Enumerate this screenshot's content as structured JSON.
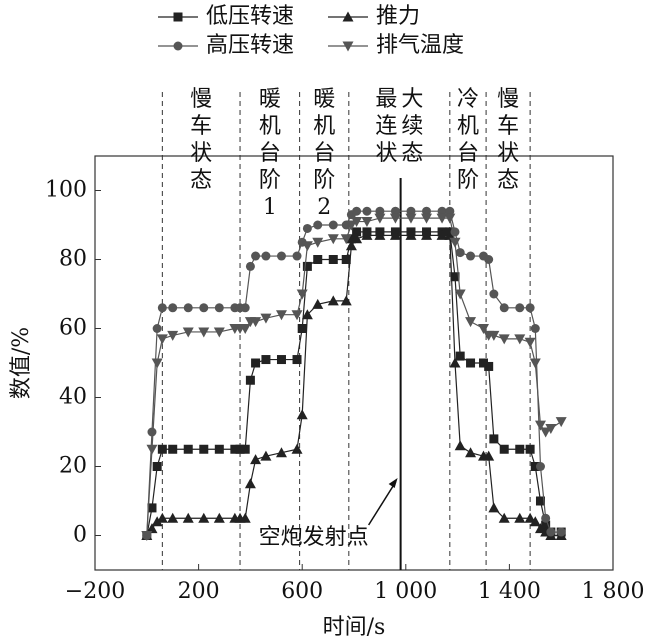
{
  "chart_data": {
    "type": "line",
    "x_label": "时间/s",
    "y_label": "数值/%",
    "xlim": [
      -200,
      1800
    ],
    "xticks": [
      {
        "value": -200,
        "label": "−200"
      },
      200,
      600,
      {
        "value": 1000,
        "label": "1 000"
      },
      {
        "value": 1400,
        "label": "1 400"
      },
      {
        "value": 1800,
        "label": "1 800"
      }
    ],
    "ylim": [
      -10,
      110
    ],
    "yticks": [
      0,
      20,
      40,
      60,
      80,
      100
    ],
    "x": [
      0,
      20,
      40,
      60,
      100,
      160,
      220,
      280,
      340,
      360,
      380,
      400,
      420,
      460,
      520,
      580,
      600,
      620,
      660,
      720,
      770,
      790,
      810,
      850,
      900,
      960,
      1020,
      1080,
      1140,
      1170,
      1190,
      1210,
      1250,
      1300,
      1320,
      1340,
      1380,
      1440,
      1480,
      1500,
      1520,
      1540,
      1560,
      1600
    ],
    "series": [
      {
        "name": "低压转速",
        "marker": "square",
        "color": "#222222",
        "values": [
          0,
          8,
          20,
          25,
          25,
          25,
          25,
          25,
          25,
          25,
          25,
          45,
          50,
          51,
          51,
          51,
          60,
          78,
          80,
          80,
          80,
          86,
          88,
          88,
          88,
          88,
          88,
          88,
          88,
          88,
          75,
          52,
          50,
          50,
          49,
          28,
          25,
          25,
          25,
          20,
          10,
          3,
          1,
          1
        ]
      },
      {
        "name": "推力",
        "marker": "triangle",
        "color": "#222222",
        "values": [
          0,
          2,
          4,
          5,
          5,
          5,
          5,
          5,
          5,
          5,
          5,
          15,
          22,
          23,
          24,
          25,
          35,
          64,
          67,
          68,
          68,
          84,
          86,
          87,
          87,
          87,
          87,
          87,
          87,
          87,
          50,
          26,
          24,
          23,
          23,
          8,
          5,
          5,
          5,
          4,
          2,
          1,
          0,
          0
        ]
      },
      {
        "name": "高压转速",
        "marker": "circle",
        "color": "#555555",
        "values": [
          0,
          30,
          60,
          66,
          66,
          66,
          66,
          66,
          66,
          66,
          66,
          78,
          81,
          81,
          81,
          81,
          85,
          89,
          90,
          90,
          90,
          93,
          94,
          94,
          94,
          94,
          94,
          94,
          94,
          94,
          88,
          82,
          81,
          81,
          80,
          70,
          66,
          66,
          66,
          60,
          20,
          5,
          1,
          1
        ]
      },
      {
        "name": "排气温度",
        "marker": "triangle-down",
        "color": "#555555",
        "values": [
          0,
          25,
          50,
          57,
          58,
          59,
          59,
          59,
          60,
          60,
          60,
          62,
          62,
          63,
          64,
          64,
          70,
          84,
          85,
          86,
          86,
          90,
          91,
          91,
          92,
          92,
          92,
          92,
          92,
          92,
          85,
          70,
          62,
          60,
          58,
          58,
          57,
          57,
          56,
          50,
          32,
          30,
          31,
          33
        ]
      }
    ],
    "phase_bounds": [
      60,
      360,
      590,
      780,
      1170,
      1310,
      1480
    ],
    "phases": [
      "慢车状态",
      "暖机台阶1",
      "暖机台阶2",
      "最大连续状态",
      "冷机台阶",
      "慢车状态"
    ],
    "annotation": {
      "text": "空炮发射点",
      "x": 980
    }
  }
}
